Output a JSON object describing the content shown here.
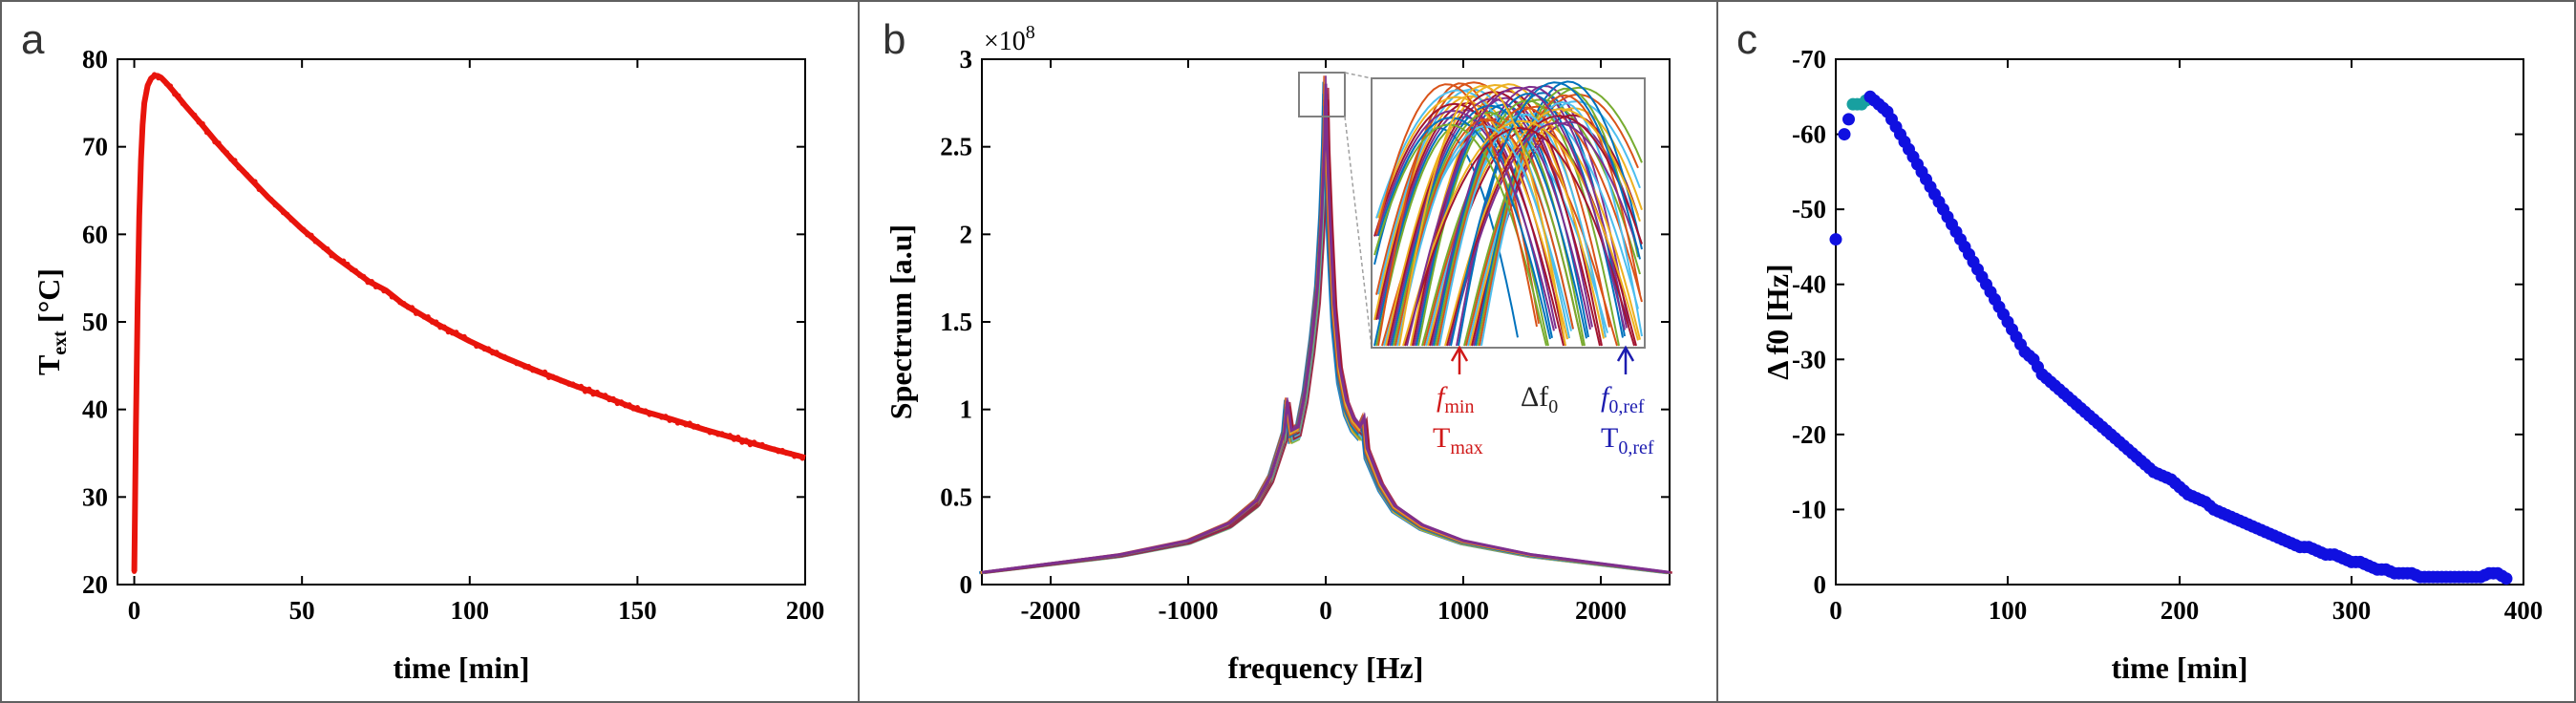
{
  "colors": {
    "panel_a_line": "#e8140c",
    "panel_c_dots": "#1010e0",
    "annot_red": "#d01818",
    "annot_blue": "#1c1cb0",
    "border": "#606060"
  },
  "panel_labels": [
    "a",
    "b",
    "c"
  ],
  "chart_data": [
    {
      "panel": "a",
      "type": "line",
      "title": "",
      "xlabel": "time [min]",
      "ylabel": "T",
      "ylabel_sub": "ext",
      "ylabel_unit": " [°C]",
      "xlim": [
        -5,
        200
      ],
      "ylim": [
        20,
        80
      ],
      "xticks": [
        0,
        50,
        100,
        150,
        200
      ],
      "yticks": [
        20,
        30,
        40,
        50,
        60,
        70,
        80
      ],
      "x": [
        0,
        0.5,
        1,
        1.5,
        2,
        2.5,
        3,
        4,
        5,
        6,
        7,
        8,
        9,
        10,
        12,
        15,
        20,
        25,
        30,
        40,
        50,
        60,
        70,
        75,
        80,
        90,
        100,
        110,
        120,
        130,
        140,
        150,
        160,
        170,
        180,
        190,
        200
      ],
      "y": [
        21.5,
        38,
        52,
        62,
        68.5,
        72.5,
        75,
        77,
        77.8,
        78.1,
        78.1,
        77.9,
        77.5,
        77.1,
        76.2,
        74.8,
        72.6,
        70.3,
        68.2,
        64.2,
        60.6,
        57.4,
        54.6,
        53.6,
        52.1,
        49.8,
        47.8,
        46.0,
        44.4,
        42.9,
        41.5,
        40.0,
        38.9,
        37.7,
        36.6,
        35.5,
        34.5
      ]
    },
    {
      "panel": "b",
      "type": "line",
      "title": "",
      "xlabel": "frequency [Hz]",
      "ylabel": "Spectrum [a.u]",
      "exponent_label": "×10",
      "exponent_power": "8",
      "xlim": [
        -2500,
        2500
      ],
      "ylim": [
        0,
        3
      ],
      "xticks": [
        -2000,
        -1000,
        0,
        1000,
        2000
      ],
      "yticks": [
        0,
        0.5,
        1,
        1.5,
        2,
        2.5,
        3
      ],
      "series_count": 100,
      "series_colors": [
        "#0072bd",
        "#d95319",
        "#edb120",
        "#7e2f8e",
        "#77ac30",
        "#4dbeee",
        "#a2142f"
      ],
      "x": [
        -2500,
        -2000,
        -1500,
        -1000,
        -700,
        -500,
        -400,
        -300,
        -280,
        -250,
        -200,
        -150,
        -100,
        -60,
        -30,
        -10,
        0,
        10,
        30,
        60,
        100,
        150,
        200,
        250,
        280,
        300,
        400,
        500,
        700,
        1000,
        1500,
        2000,
        2500
      ],
      "y": [
        0.07,
        0.12,
        0.17,
        0.25,
        0.35,
        0.48,
        0.62,
        0.87,
        1.05,
        0.88,
        0.9,
        1.1,
        1.4,
        1.7,
        2.1,
        2.5,
        2.86,
        2.5,
        2.1,
        1.6,
        1.25,
        1.05,
        0.95,
        0.9,
        0.95,
        0.78,
        0.58,
        0.45,
        0.34,
        0.25,
        0.17,
        0.12,
        0.07
      ],
      "inset": {
        "annotations": {
          "f_min": "f",
          "f_min_sub": "min",
          "t_max": "T",
          "t_max_sub": "max",
          "delta_f0": "Δf",
          "delta_f0_sub": "0",
          "f0_ref": "f",
          "f0_ref_sub": "0,ref",
          "t0_ref": "T",
          "t0_ref_sub": "0,ref"
        }
      }
    },
    {
      "panel": "c",
      "type": "scatter",
      "title": "",
      "xlabel": "time [min]",
      "ylabel": "Δ f0 [Hz]",
      "xlim": [
        0,
        400
      ],
      "ylim": [
        0,
        -70
      ],
      "xticks": [
        0,
        100,
        200,
        300,
        400
      ],
      "yticks": [
        0,
        -10,
        -20,
        -30,
        -40,
        -50,
        -60,
        -70
      ],
      "x": [
        0,
        5,
        10,
        15,
        20,
        25,
        30,
        35,
        40,
        45,
        50,
        55,
        60,
        65,
        70,
        75,
        80,
        85,
        90,
        95,
        100,
        105,
        110,
        115,
        120,
        125,
        130,
        135,
        140,
        145,
        150,
        155,
        160,
        165,
        170,
        175,
        180,
        185,
        190,
        195,
        200,
        205,
        210,
        215,
        220,
        225,
        230,
        235,
        240,
        245,
        250,
        255,
        260,
        265,
        270,
        275,
        280,
        285,
        290,
        295,
        300,
        305,
        310,
        315,
        320,
        325,
        330,
        335,
        340,
        345,
        350,
        355,
        360,
        365,
        370,
        375,
        380,
        385,
        390
      ],
      "y": [
        -46,
        -60,
        -64,
        -64,
        -65,
        -64,
        -63,
        -61,
        -59,
        -57,
        -55,
        -53,
        -51,
        -49,
        -47,
        -45,
        -43,
        -41,
        -39,
        -37,
        -35,
        -33,
        -31,
        -30,
        -28,
        -27,
        -26,
        -25,
        -24,
        -23,
        -22,
        -21,
        -20,
        -19,
        -18,
        -17,
        -16,
        -15,
        -14.5,
        -14,
        -13,
        -12,
        -11.5,
        -11,
        -10,
        -9.5,
        -9,
        -8.5,
        -8,
        -7.5,
        -7,
        -6.5,
        -6,
        -5.5,
        -5,
        -5,
        -4.5,
        -4,
        -4,
        -3.5,
        -3,
        -3,
        -2.5,
        -2,
        -2,
        -1.5,
        -1.5,
        -1.5,
        -1,
        -1,
        -1,
        -1,
        -1,
        -1,
        -1,
        -1,
        -1.5,
        -1.5,
        -0.8
      ],
      "highlight_color": "#18a0a0"
    }
  ]
}
